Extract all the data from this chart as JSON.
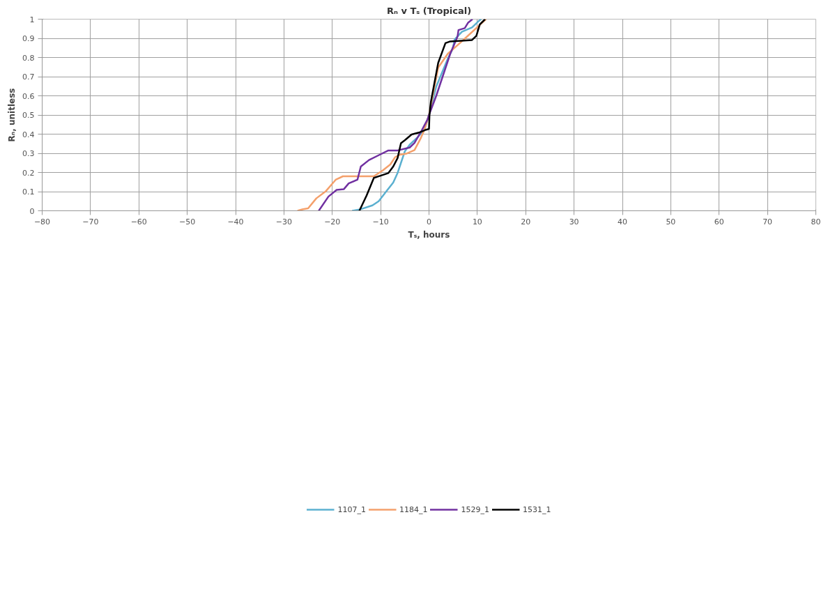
{
  "chart_data": {
    "type": "line",
    "title": "Rₙ v Tₛ (Tropical)",
    "xlabel": "Tₛ, hours",
    "ylabel": "Rₙ, unitless",
    "xlim": [
      -80,
      80
    ],
    "ylim": [
      0,
      1
    ],
    "xticks": [
      -80,
      -70,
      -60,
      -50,
      -40,
      -30,
      -20,
      -10,
      0,
      10,
      20,
      30,
      40,
      50,
      60,
      70,
      80
    ],
    "yticks": [
      0,
      0.1,
      0.2,
      0.3,
      0.4,
      0.5,
      0.6,
      0.7,
      0.8,
      0.9,
      1
    ],
    "grid": true,
    "legend": "bottom",
    "marker": "none",
    "line_style": "solid",
    "series": [
      {
        "name": "1107_1",
        "color": "#5bb0d0",
        "x": [
          -15.9,
          -14.4,
          -11.7,
          -10.4,
          -8.9,
          -7.4,
          -6.5,
          -5.8,
          -5.0,
          -4.0,
          -2.5,
          -1.0,
          0,
          1.5,
          3.9,
          4.9,
          5.3,
          6.8,
          8.9,
          10.4,
          10.8
        ],
        "values": [
          0,
          0.006,
          0.028,
          0.05,
          0.099,
          0.147,
          0.197,
          0.25,
          0.31,
          0.345,
          0.38,
          0.42,
          0.5,
          0.648,
          0.795,
          0.845,
          0.894,
          0.934,
          0.957,
          0.993,
          1
        ]
      },
      {
        "name": "1184_1",
        "color": "#f4a06b",
        "x": [
          -27.2,
          -26.2,
          -25.0,
          -23.3,
          -21.3,
          -19.3,
          -17.8,
          -11.4,
          -9.5,
          -8.0,
          -7.0,
          -6.0,
          -4.7,
          -3.0,
          -1.8,
          -1.0,
          0,
          1.9,
          3.9,
          5.9,
          8.3,
          10.4,
          11.8
        ],
        "values": [
          0,
          0.007,
          0.013,
          0.065,
          0.103,
          0.162,
          0.18,
          0.18,
          0.212,
          0.242,
          0.28,
          0.293,
          0.298,
          0.317,
          0.374,
          0.42,
          0.5,
          0.747,
          0.82,
          0.864,
          0.919,
          0.968,
          1
        ]
      },
      {
        "name": "1529_1",
        "color": "#7030a0",
        "x": [
          -22.8,
          -20.8,
          -19.1,
          -17.6,
          -16.6,
          -14.8,
          -14.1,
          -12.4,
          -10.4,
          -8.4,
          -6.5,
          -4.0,
          -3.0,
          -1.5,
          -0.3,
          0,
          1.5,
          4.4,
          5.9,
          6.1,
          7.4,
          8.1,
          9.0
        ],
        "values": [
          0,
          0.074,
          0.109,
          0.113,
          0.143,
          0.162,
          0.231,
          0.265,
          0.29,
          0.315,
          0.315,
          0.33,
          0.354,
          0.42,
          0.477,
          0.5,
          0.6,
          0.82,
          0.909,
          0.943,
          0.953,
          0.982,
          1
        ]
      },
      {
        "name": "1531_1",
        "color": "#000000",
        "x": [
          -14.4,
          -12.9,
          -11.4,
          -9.9,
          -8.4,
          -7.4,
          -6.5,
          -5.8,
          -5.0,
          -3.6,
          -2.1,
          -0.6,
          0,
          0.1,
          0.4,
          1.9,
          3.4,
          4.4,
          8.9,
          9.8,
          10.5,
          11.6
        ],
        "values": [
          0,
          0.08,
          0.172,
          0.184,
          0.197,
          0.231,
          0.275,
          0.353,
          0.368,
          0.398,
          0.408,
          0.423,
          0.427,
          0.5,
          0.57,
          0.772,
          0.875,
          0.884,
          0.891,
          0.913,
          0.972,
          1
        ]
      }
    ]
  }
}
